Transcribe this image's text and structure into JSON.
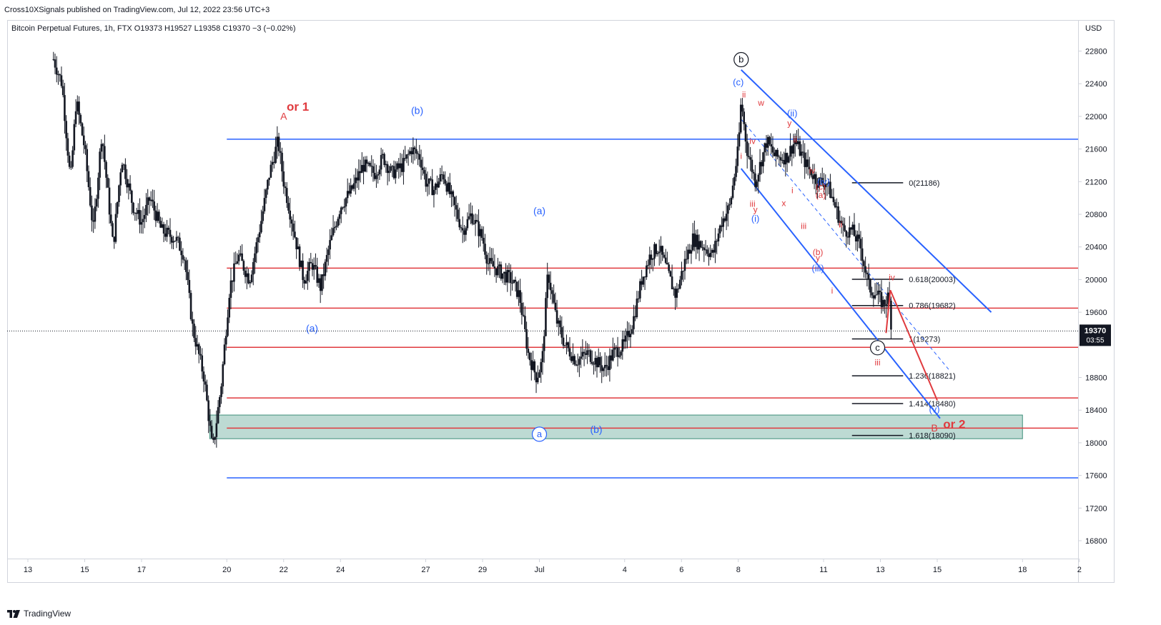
{
  "header": {
    "published": "Cross10XSignals published on TradingView.com, Jul 12, 2022 23:56 UTC+3"
  },
  "legend": {
    "text": "Bitcoin Perpetual Futures, 1h, FTX  O19373  H19527  L19358  C19370  −3 (−0.02%)"
  },
  "footer": {
    "brand": "TradingView"
  },
  "colors": {
    "red": "#e03a3e",
    "blue": "#2962ff",
    "candle": "#131722",
    "zone": "#b2d3cb",
    "zone_border": "#3d8f7a"
  },
  "chart_data": {
    "type": "candlestick",
    "symbol": "Bitcoin Perpetual Futures",
    "timeframe": "1h",
    "exchange": "FTX",
    "currency": "USD",
    "ylim": [
      16400,
      23000
    ],
    "y_ticks": [
      16800,
      17200,
      17600,
      18000,
      18400,
      18800,
      19200,
      19600,
      20000,
      20400,
      20800,
      21200,
      21600,
      22000,
      22400,
      22800
    ],
    "y_tick_labels": [
      "16800",
      "17200",
      "17600",
      "18000",
      "18400",
      "18800",
      "",
      "19600",
      "20000",
      "20400",
      "20800",
      "21200",
      "21600",
      "22000",
      "22400",
      "22800"
    ],
    "x_ticks": [
      {
        "label": "13",
        "d": 0
      },
      {
        "label": "15",
        "d": 2
      },
      {
        "label": "17",
        "d": 4
      },
      {
        "label": "20",
        "d": 7
      },
      {
        "label": "22",
        "d": 9
      },
      {
        "label": "24",
        "d": 11
      },
      {
        "label": "27",
        "d": 14
      },
      {
        "label": "29",
        "d": 16
      },
      {
        "label": "Jul",
        "d": 18
      },
      {
        "label": "4",
        "d": 21
      },
      {
        "label": "6",
        "d": 23
      },
      {
        "label": "8",
        "d": 25
      },
      {
        "label": "11",
        "d": 28
      },
      {
        "label": "13",
        "d": 30
      },
      {
        "label": "15",
        "d": 32
      },
      {
        "label": "18",
        "d": 35
      },
      {
        "label": "2",
        "d": 37
      }
    ],
    "price_path": [
      [
        0.9,
        22700
      ],
      [
        1.2,
        22400
      ],
      [
        1.5,
        21200
      ],
      [
        1.7,
        22200
      ],
      [
        2.0,
        21600
      ],
      [
        2.3,
        20600
      ],
      [
        2.6,
        21800
      ],
      [
        3.0,
        20400
      ],
      [
        3.3,
        21500
      ],
      [
        3.7,
        20900
      ],
      [
        4.0,
        20700
      ],
      [
        4.3,
        21000
      ],
      [
        4.7,
        20600
      ],
      [
        5.2,
        20500
      ],
      [
        5.5,
        20300
      ],
      [
        5.8,
        19400
      ],
      [
        6.2,
        18800
      ],
      [
        6.5,
        17900
      ],
      [
        6.8,
        18700
      ],
      [
        7.1,
        19900
      ],
      [
        7.4,
        20300
      ],
      [
        7.8,
        20000
      ],
      [
        8.2,
        20700
      ],
      [
        8.5,
        21300
      ],
      [
        8.8,
        21700
      ],
      [
        9.0,
        21200
      ],
      [
        9.3,
        20700
      ],
      [
        9.7,
        20000
      ],
      [
        10.0,
        20200
      ],
      [
        10.3,
        19900
      ],
      [
        10.6,
        20400
      ],
      [
        11.0,
        20900
      ],
      [
        11.4,
        21100
      ],
      [
        11.8,
        21400
      ],
      [
        12.2,
        21300
      ],
      [
        12.5,
        21500
      ],
      [
        12.8,
        21300
      ],
      [
        13.2,
        21400
      ],
      [
        13.5,
        21600
      ],
      [
        13.8,
        21500
      ],
      [
        14.0,
        21200
      ],
      [
        14.3,
        21100
      ],
      [
        14.6,
        21300
      ],
      [
        15.0,
        20900
      ],
      [
        15.3,
        20600
      ],
      [
        15.6,
        20800
      ],
      [
        16.0,
        20500
      ],
      [
        16.2,
        20200
      ],
      [
        16.6,
        20100
      ],
      [
        17.0,
        20000
      ],
      [
        17.3,
        19800
      ],
      [
        17.6,
        19100
      ],
      [
        17.9,
        18800
      ],
      [
        18.1,
        19000
      ],
      [
        18.3,
        20100
      ],
      [
        18.6,
        19500
      ],
      [
        18.9,
        19200
      ],
      [
        19.3,
        19000
      ],
      [
        19.7,
        19100
      ],
      [
        20.0,
        19000
      ],
      [
        20.3,
        18900
      ],
      [
        20.6,
        19100
      ],
      [
        21.0,
        19200
      ],
      [
        21.3,
        19500
      ],
      [
        21.6,
        20000
      ],
      [
        21.9,
        20300
      ],
      [
        22.2,
        20400
      ],
      [
        22.5,
        20100
      ],
      [
        22.8,
        19800
      ],
      [
        23.1,
        20200
      ],
      [
        23.4,
        20500
      ],
      [
        23.8,
        20400
      ],
      [
        24.1,
        20300
      ],
      [
        24.4,
        20700
      ],
      [
        24.7,
        20900
      ],
      [
        25.0,
        21600
      ],
      [
        25.1,
        22200
      ],
      [
        25.3,
        21600
      ],
      [
        25.6,
        21200
      ],
      [
        26.0,
        21700
      ],
      [
        26.3,
        21500
      ],
      [
        26.7,
        21500
      ],
      [
        27.0,
        21700
      ],
      [
        27.4,
        21400
      ],
      [
        27.8,
        21200
      ],
      [
        28.1,
        21200
      ],
      [
        28.4,
        20900
      ],
      [
        28.7,
        20600
      ],
      [
        29.0,
        20600
      ],
      [
        29.3,
        20400
      ],
      [
        29.6,
        19900
      ],
      [
        29.9,
        19800
      ],
      [
        30.1,
        19700
      ],
      [
        30.3,
        19800
      ],
      [
        30.4,
        19370
      ]
    ],
    "horizontal_lines": [
      {
        "name": "blue-resistance",
        "price": 21720,
        "color": "blue"
      },
      {
        "name": "blue-support",
        "price": 17570,
        "color": "blue"
      },
      {
        "name": "red-level-1",
        "price": 20140,
        "color": "red"
      },
      {
        "name": "red-level-2",
        "price": 19650,
        "color": "red"
      },
      {
        "name": "red-level-3",
        "price": 19170,
        "color": "red"
      },
      {
        "name": "red-level-4",
        "price": 18550,
        "color": "red"
      },
      {
        "name": "red-level-5",
        "price": 18180,
        "color": "red"
      }
    ],
    "zone": {
      "from_price": 18050,
      "to_price": 18340,
      "d_start": 6.4,
      "d_end": 35.0
    },
    "fibonacci": [
      {
        "label": "0(21186)",
        "price": 21186
      },
      {
        "label": "0.618(20003)",
        "price": 20003
      },
      {
        "label": "0.786(19682)",
        "price": 19682
      },
      {
        "label": "1(19273)",
        "price": 19273
      },
      {
        "label": "1.236(18821)",
        "price": 18821
      },
      {
        "label": "1.414(18480)",
        "price": 18480
      },
      {
        "label": "1.618(18090)",
        "price": 18090
      }
    ],
    "channel": [
      {
        "name": "upper",
        "from": [
          25.1,
          22570
        ],
        "to": [
          33.9,
          19600
        ]
      },
      {
        "name": "lower",
        "from": [
          25.1,
          21360
        ],
        "to": [
          32.1,
          18300
        ]
      }
    ],
    "projection": [
      [
        30.35,
        19870
      ],
      [
        32.0,
        18520
      ]
    ],
    "current_price": {
      "value": "19370",
      "countdown": "03:55",
      "price": 19370
    },
    "annotations": [
      {
        "text": "A",
        "d": 9.0,
        "p": 21960,
        "color": "red",
        "size": 14
      },
      {
        "text": "or 1",
        "d": 9.5,
        "p": 22070,
        "color": "red",
        "size": 17,
        "bold": true
      },
      {
        "text": "(b)",
        "d": 13.7,
        "p": 22030,
        "color": "blue",
        "size": 14
      },
      {
        "text": "(a)",
        "d": 10.0,
        "p": 19360,
        "color": "blue",
        "size": 14
      },
      {
        "text": "(a)",
        "d": 18.0,
        "p": 20800,
        "color": "blue",
        "size": 14
      },
      {
        "text": "(b)",
        "d": 20.0,
        "p": 18120,
        "color": "blue",
        "size": 14
      },
      {
        "text": "a",
        "d": 18.0,
        "p": 18070,
        "color": "blue",
        "size": 13,
        "circle": true
      },
      {
        "text": "b",
        "d": 25.1,
        "p": 22660,
        "color": "black",
        "size": 13,
        "circle": true
      },
      {
        "text": "(c)",
        "d": 25.0,
        "p": 22380,
        "color": "blue",
        "size": 13
      },
      {
        "text": "ii",
        "d": 25.2,
        "p": 22230,
        "color": "red",
        "size": 12
      },
      {
        "text": "w",
        "d": 25.8,
        "p": 22130,
        "color": "red",
        "size": 12
      },
      {
        "text": "(ii)",
        "d": 26.9,
        "p": 22000,
        "color": "blue",
        "size": 13
      },
      {
        "text": "y",
        "d": 26.8,
        "p": 21880,
        "color": "red",
        "size": 12
      },
      {
        "text": "ii",
        "d": 27.0,
        "p": 21680,
        "color": "red",
        "size": 12
      },
      {
        "text": "iv",
        "d": 25.5,
        "p": 21660,
        "color": "red",
        "size": 12
      },
      {
        "text": "i",
        "d": 25.1,
        "p": 21480,
        "color": "red",
        "size": 12
      },
      {
        "text": "iv",
        "d": 27.6,
        "p": 21300,
        "color": "red",
        "size": 12
      },
      {
        "text": "(iv)",
        "d": 28.0,
        "p": 21160,
        "color": "blue",
        "size": 13
      },
      {
        "text": "(c)",
        "d": 27.9,
        "p": 21100,
        "color": "red",
        "size": 12
      },
      {
        "text": "(a)",
        "d": 27.9,
        "p": 21000,
        "color": "red",
        "size": 12
      },
      {
        "text": "i",
        "d": 26.9,
        "p": 21060,
        "color": "red",
        "size": 12
      },
      {
        "text": "iii",
        "d": 25.5,
        "p": 20890,
        "color": "red",
        "size": 12
      },
      {
        "text": "y",
        "d": 25.6,
        "p": 20820,
        "color": "red",
        "size": 12
      },
      {
        "text": "(i)",
        "d": 25.6,
        "p": 20710,
        "color": "blue",
        "size": 13
      },
      {
        "text": "x",
        "d": 26.6,
        "p": 20900,
        "color": "red",
        "size": 12
      },
      {
        "text": "iii",
        "d": 27.3,
        "p": 20620,
        "color": "red",
        "size": 12
      },
      {
        "text": "ii",
        "d": 28.6,
        "p": 20640,
        "color": "red",
        "size": 12
      },
      {
        "text": "(b)",
        "d": 27.8,
        "p": 20300,
        "color": "red",
        "size": 12
      },
      {
        "text": "y",
        "d": 27.8,
        "p": 20230,
        "color": "red",
        "size": 12
      },
      {
        "text": "(iii)",
        "d": 27.8,
        "p": 20100,
        "color": "blue",
        "size": 13
      },
      {
        "text": "i",
        "d": 28.3,
        "p": 19830,
        "color": "red",
        "size": 12
      },
      {
        "text": "iv",
        "d": 30.4,
        "p": 19990,
        "color": "red",
        "size": 12
      },
      {
        "text": "c",
        "d": 29.9,
        "p": 19130,
        "color": "black",
        "size": 13,
        "circle": true
      },
      {
        "text": "iii",
        "d": 29.9,
        "p": 18950,
        "color": "red",
        "size": 12
      },
      {
        "text": "(v)",
        "d": 31.9,
        "p": 18370,
        "color": "blue",
        "size": 13
      },
      {
        "text": "B",
        "d": 31.9,
        "p": 18140,
        "color": "red",
        "size": 14
      },
      {
        "text": "or 2",
        "d": 32.6,
        "p": 18180,
        "color": "red",
        "size": 17,
        "bold": true
      }
    ]
  }
}
